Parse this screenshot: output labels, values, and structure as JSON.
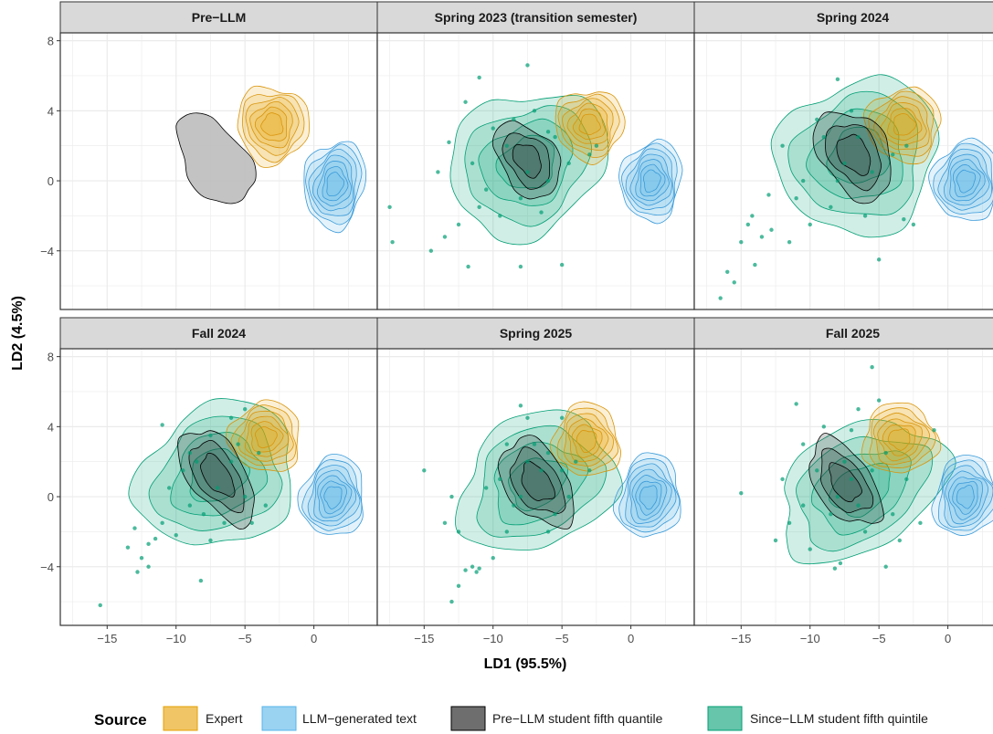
{
  "chart_data": {
    "type": "scatter",
    "xlabel": "LD1 (95.5%)",
    "ylabel": "LD2 (4.5%)",
    "xlim": [
      -18.4,
      4.6
    ],
    "ylim": [
      -7.35,
      8.45
    ],
    "x_ticks": [
      -15,
      -10,
      -5,
      0
    ],
    "y_ticks": [
      -4,
      0,
      4,
      8
    ],
    "grid": true,
    "legend": {
      "title": "Source",
      "position": "bottom",
      "items": [
        {
          "label": "Expert",
          "color": "#E69F00"
        },
        {
          "label": "LLM−generated text",
          "color": "#56B4E9"
        },
        {
          "label": "Pre−LLM student fifth quantile",
          "color": "#333333"
        },
        {
          "label": "Since−LLM student fifth quintile",
          "color": "#009E73"
        }
      ]
    },
    "panels": [
      {
        "title": "Pre−LLM",
        "expert": {
          "cx": -3.0,
          "cy": 3.2,
          "rx": 2.6,
          "ry": 2.2
        },
        "llm": {
          "cx": 1.5,
          "cy": -0.2,
          "rx": 2.2,
          "ry": 2.5
        },
        "pre": {
          "cx": -7.2,
          "cy": 1.2,
          "rx": 2.2,
          "ry": 2.9
        },
        "since": null,
        "points": []
      },
      {
        "title": "Spring 2023 (transition semester)",
        "expert": {
          "cx": -3.0,
          "cy": 3.2,
          "rx": 2.5,
          "ry": 2.0
        },
        "llm": {
          "cx": 1.5,
          "cy": 0.0,
          "rx": 2.2,
          "ry": 2.3
        },
        "pre": {
          "cx": -7.5,
          "cy": 1.2,
          "rx": 2.0,
          "ry": 2.4
        },
        "since": {
          "cx": -7.5,
          "cy": 1.0,
          "rx": 6.0,
          "ry": 3.9
        },
        "points": [
          [
            -11.0,
            5.9
          ],
          [
            -7.5,
            6.6
          ],
          [
            -17.5,
            -1.5
          ],
          [
            -17.3,
            -3.5
          ],
          [
            -14.5,
            -4.0
          ],
          [
            -11.8,
            -4.9
          ],
          [
            -8.0,
            -4.9
          ],
          [
            -5.0,
            -4.8
          ],
          [
            -13.2,
            2.2
          ],
          [
            -11.0,
            -1.5
          ],
          [
            -14.0,
            0.5
          ],
          [
            -13.5,
            -3.2
          ],
          [
            -12.0,
            4.5
          ],
          [
            -6.0,
            0.0
          ],
          [
            -9.0,
            2.0
          ],
          [
            -10.5,
            -0.5
          ],
          [
            -8.5,
            3.5
          ],
          [
            -5.5,
            2.5
          ],
          [
            -9.5,
            -2.0
          ],
          [
            -7.0,
            4.0
          ],
          [
            -12.5,
            -2.5
          ],
          [
            -6.5,
            -1.8
          ],
          [
            -4.5,
            1.0
          ],
          [
            -3.0,
            1.5
          ],
          [
            -2.5,
            2.0
          ],
          [
            -8.0,
            -1.0
          ],
          [
            -11.5,
            1.0
          ],
          [
            -7.5,
            0.5
          ],
          [
            -10.0,
            3.0
          ],
          [
            -6.0,
            2.8
          ]
        ]
      },
      {
        "title": "Spring 2024",
        "expert": {
          "cx": -3.2,
          "cy": 3.2,
          "rx": 2.7,
          "ry": 2.1
        },
        "llm": {
          "cx": 1.3,
          "cy": 0.0,
          "rx": 2.4,
          "ry": 2.3
        },
        "pre": {
          "cx": -6.8,
          "cy": 1.5,
          "rx": 2.4,
          "ry": 2.8
        },
        "since": {
          "cx": -6.5,
          "cy": 1.4,
          "rx": 6.0,
          "ry": 4.3
        },
        "points": [
          [
            -16.5,
            -6.7
          ],
          [
            -16.0,
            -5.2
          ],
          [
            -15.5,
            -5.8
          ],
          [
            -14.0,
            -4.8
          ],
          [
            -15.0,
            -3.5
          ],
          [
            -13.5,
            -3.2
          ],
          [
            -12.8,
            -2.8
          ],
          [
            -11.5,
            -3.5
          ],
          [
            -13.0,
            -0.8
          ],
          [
            -12.0,
            2.0
          ],
          [
            -14.2,
            -2.0
          ],
          [
            -14.5,
            -2.5
          ],
          [
            -8.0,
            5.8
          ],
          [
            -5.0,
            -4.5
          ],
          [
            -2.5,
            -2.5
          ],
          [
            -3.2,
            -2.2
          ],
          [
            -10.5,
            0.0
          ],
          [
            -9.0,
            2.5
          ],
          [
            -7.0,
            4.0
          ],
          [
            -5.5,
            0.5
          ],
          [
            -8.5,
            -1.5
          ],
          [
            -11.0,
            -1.0
          ],
          [
            -6.0,
            -2.0
          ],
          [
            -4.0,
            1.5
          ],
          [
            -3.0,
            2.0
          ],
          [
            -7.5,
            1.0
          ],
          [
            -9.5,
            3.5
          ],
          [
            -6.5,
            2.5
          ],
          [
            -10.0,
            -2.5
          ],
          [
            -8.0,
            0.0
          ]
        ]
      },
      {
        "title": "Fall 2024",
        "expert": {
          "cx": -3.5,
          "cy": 3.4,
          "rx": 2.6,
          "ry": 2.0
        },
        "llm": {
          "cx": 1.4,
          "cy": 0.0,
          "rx": 2.3,
          "ry": 2.3
        },
        "pre": {
          "cx": -7.0,
          "cy": 1.2,
          "rx": 2.0,
          "ry": 3.1
        },
        "since": {
          "cx": -7.0,
          "cy": 1.2,
          "rx": 6.0,
          "ry": 3.9
        },
        "points": [
          [
            -15.5,
            -6.2
          ],
          [
            -13.0,
            -1.8
          ],
          [
            -13.5,
            -2.9
          ],
          [
            -12.8,
            -4.3
          ],
          [
            -12.0,
            -2.7
          ],
          [
            -11.5,
            -2.4
          ],
          [
            -11.0,
            4.1
          ],
          [
            -8.2,
            -4.8
          ],
          [
            -12.0,
            -4.0
          ],
          [
            -12.5,
            -3.5
          ],
          [
            -11.0,
            -1.5
          ],
          [
            -10.0,
            -2.2
          ],
          [
            -9.0,
            2.5
          ],
          [
            -6.0,
            4.5
          ],
          [
            -5.0,
            5.0
          ],
          [
            -7.5,
            3.5
          ],
          [
            -10.5,
            0.5
          ],
          [
            -8.0,
            -1.0
          ],
          [
            -5.0,
            0.0
          ],
          [
            -4.0,
            2.5
          ],
          [
            -6.5,
            -1.5
          ],
          [
            -9.5,
            1.5
          ],
          [
            -3.5,
            -0.5
          ],
          [
            -7.0,
            0.5
          ],
          [
            -8.5,
            2.0
          ],
          [
            -6.0,
            2.0
          ],
          [
            -4.5,
            -1.5
          ],
          [
            -9.0,
            -0.5
          ],
          [
            -5.5,
            3.0
          ],
          [
            -7.5,
            -2.5
          ]
        ]
      },
      {
        "title": "Spring 2025",
        "expert": {
          "cx": -3.2,
          "cy": 3.2,
          "rx": 2.4,
          "ry": 2.1
        },
        "llm": {
          "cx": 1.3,
          "cy": 0.0,
          "rx": 2.3,
          "ry": 2.4
        },
        "pre": {
          "cx": -6.8,
          "cy": 0.8,
          "rx": 2.2,
          "ry": 2.8
        },
        "since": {
          "cx": -6.8,
          "cy": 0.8,
          "rx": 6.0,
          "ry": 3.7
        },
        "points": [
          [
            -15.0,
            1.5
          ],
          [
            -13.0,
            -6.0
          ],
          [
            -12.5,
            -5.1
          ],
          [
            -12.0,
            -4.2
          ],
          [
            -11.5,
            -4.0
          ],
          [
            -11.2,
            -4.3
          ],
          [
            -11.0,
            -4.1
          ],
          [
            -13.0,
            0.0
          ],
          [
            -13.5,
            -1.5
          ],
          [
            -12.5,
            -2.0
          ],
          [
            -10.0,
            -3.5
          ],
          [
            -9.0,
            -2.0
          ],
          [
            -7.5,
            4.5
          ],
          [
            -8.0,
            5.2
          ],
          [
            -5.0,
            4.5
          ],
          [
            -4.0,
            2.0
          ],
          [
            -9.5,
            1.0
          ],
          [
            -7.0,
            3.0
          ],
          [
            -5.5,
            -1.0
          ],
          [
            -6.5,
            1.5
          ],
          [
            -8.5,
            -0.5
          ],
          [
            -10.5,
            0.5
          ],
          [
            -4.5,
            0.0
          ],
          [
            -6.0,
            -2.0
          ],
          [
            -7.5,
            2.0
          ],
          [
            -9.0,
            3.0
          ],
          [
            -5.0,
            1.5
          ],
          [
            -3.0,
            1.5
          ],
          [
            -8.0,
            0.0
          ],
          [
            -6.0,
            2.5
          ]
        ]
      },
      {
        "title": "Fall 2025",
        "expert": {
          "cx": -3.5,
          "cy": 3.3,
          "rx": 2.7,
          "ry": 2.0
        },
        "llm": {
          "cx": 1.3,
          "cy": 0.0,
          "rx": 2.3,
          "ry": 2.3
        },
        "pre": {
          "cx": -7.5,
          "cy": 0.8,
          "rx": 2.0,
          "ry": 2.8
        },
        "since": {
          "cx": -6.3,
          "cy": 0.4,
          "rx": 6.5,
          "ry": 3.5
        },
        "points": [
          [
            -15.0,
            0.2
          ],
          [
            -5.5,
            7.4
          ],
          [
            -5.0,
            5.5
          ],
          [
            -6.5,
            5.0
          ],
          [
            -11.0,
            5.3
          ],
          [
            -4.5,
            -4.0
          ],
          [
            -8.2,
            -4.1
          ],
          [
            -7.8,
            -3.8
          ],
          [
            -12.5,
            -2.5
          ],
          [
            -10.5,
            3.0
          ],
          [
            -9.0,
            4.0
          ],
          [
            -7.0,
            3.8
          ],
          [
            -11.5,
            -1.5
          ],
          [
            -10.0,
            -3.0
          ],
          [
            -8.5,
            -1.0
          ],
          [
            -6.0,
            -2.0
          ],
          [
            -4.0,
            -1.0
          ],
          [
            -3.0,
            1.0
          ],
          [
            -1.0,
            3.8
          ],
          [
            -9.5,
            1.5
          ],
          [
            -7.5,
            2.0
          ],
          [
            -5.5,
            1.5
          ],
          [
            -8.0,
            0.0
          ],
          [
            -6.5,
            -0.5
          ],
          [
            -4.5,
            2.5
          ],
          [
            -2.0,
            -1.5
          ],
          [
            -12.0,
            1.0
          ],
          [
            -10.5,
            -0.5
          ],
          [
            -3.5,
            -2.5
          ],
          [
            -7.0,
            1.0
          ]
        ]
      }
    ]
  }
}
